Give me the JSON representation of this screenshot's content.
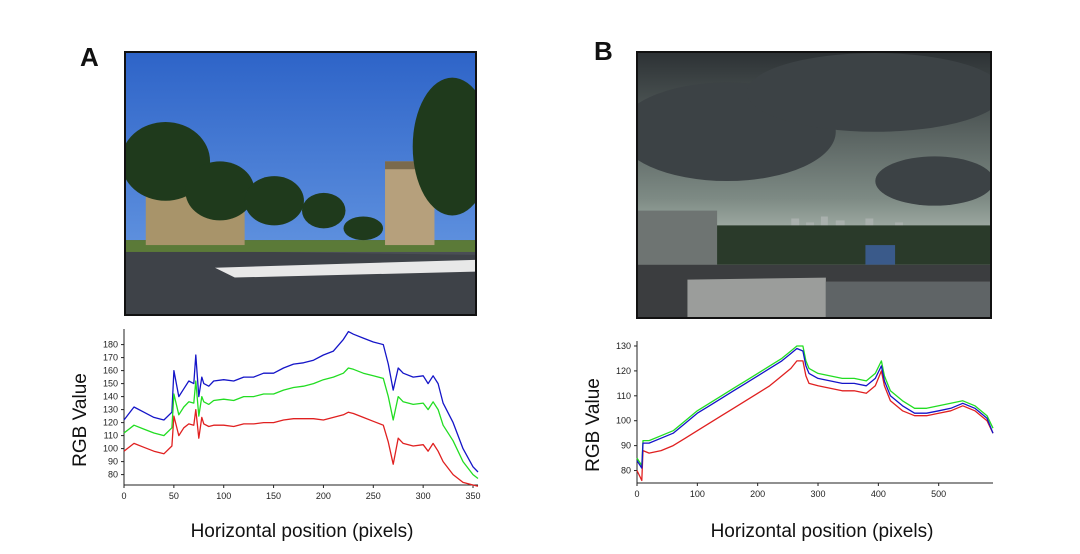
{
  "panels": [
    {
      "letter": "A",
      "photo": "campus street scene under clear blue sky"
    },
    {
      "letter": "B",
      "photo": "storm clouds over city skyline"
    }
  ],
  "colors": {
    "red": "#e02020",
    "green": "#22dd22",
    "blue": "#1515c8"
  },
  "chart_data": [
    {
      "type": "line",
      "panel": "A",
      "xlabel": "Horizontal position (pixels)",
      "ylabel": "RGB Value",
      "xlim": [
        0,
        355
      ],
      "ylim": [
        72,
        192
      ],
      "xticks": [
        0,
        50,
        100,
        150,
        200,
        250,
        300,
        350
      ],
      "yticks": [
        80,
        90,
        100,
        110,
        120,
        130,
        140,
        150,
        160,
        170,
        180
      ],
      "series": [
        {
          "name": "Blue",
          "color": "#1515c8",
          "x": [
            0,
            10,
            20,
            30,
            40,
            48,
            50,
            55,
            60,
            65,
            70,
            72,
            75,
            78,
            80,
            85,
            90,
            100,
            110,
            120,
            130,
            140,
            150,
            160,
            170,
            180,
            190,
            200,
            210,
            220,
            225,
            230,
            240,
            250,
            260,
            265,
            270,
            275,
            280,
            290,
            300,
            305,
            310,
            315,
            320,
            330,
            340,
            350,
            355
          ],
          "y": [
            122,
            132,
            128,
            124,
            122,
            128,
            160,
            140,
            146,
            152,
            150,
            172,
            140,
            155,
            150,
            148,
            152,
            153,
            152,
            155,
            155,
            158,
            158,
            162,
            165,
            166,
            168,
            172,
            175,
            184,
            190,
            188,
            185,
            182,
            180,
            165,
            145,
            162,
            158,
            155,
            156,
            150,
            156,
            150,
            135,
            120,
            100,
            86,
            82
          ]
        },
        {
          "name": "Green",
          "color": "#22dd22",
          "x": [
            0,
            10,
            20,
            30,
            40,
            48,
            50,
            55,
            60,
            65,
            70,
            72,
            75,
            78,
            80,
            85,
            90,
            100,
            110,
            120,
            130,
            140,
            150,
            160,
            170,
            180,
            190,
            200,
            210,
            220,
            225,
            230,
            240,
            250,
            260,
            265,
            270,
            275,
            280,
            290,
            300,
            305,
            310,
            315,
            320,
            330,
            340,
            350,
            355
          ],
          "y": [
            112,
            118,
            115,
            112,
            110,
            116,
            142,
            126,
            132,
            136,
            135,
            152,
            125,
            140,
            136,
            134,
            137,
            138,
            137,
            140,
            140,
            142,
            142,
            145,
            147,
            148,
            150,
            153,
            155,
            158,
            162,
            161,
            158,
            156,
            154,
            140,
            122,
            140,
            136,
            134,
            135,
            130,
            136,
            130,
            118,
            106,
            90,
            80,
            77
          ]
        },
        {
          "name": "Red",
          "color": "#e02020",
          "x": [
            0,
            10,
            20,
            30,
            40,
            48,
            50,
            55,
            60,
            65,
            70,
            72,
            75,
            78,
            80,
            85,
            90,
            100,
            110,
            120,
            130,
            140,
            150,
            160,
            170,
            180,
            190,
            200,
            210,
            220,
            225,
            230,
            240,
            250,
            260,
            265,
            270,
            275,
            280,
            290,
            300,
            305,
            310,
            315,
            320,
            330,
            340,
            350,
            355
          ],
          "y": [
            98,
            104,
            101,
            98,
            96,
            102,
            125,
            110,
            116,
            119,
            118,
            130,
            108,
            124,
            119,
            117,
            118,
            118,
            117,
            119,
            119,
            120,
            120,
            122,
            123,
            123,
            123,
            122,
            124,
            126,
            128,
            127,
            124,
            121,
            118,
            105,
            88,
            108,
            104,
            102,
            103,
            98,
            104,
            98,
            90,
            80,
            74,
            72,
            71
          ]
        }
      ]
    },
    {
      "type": "line",
      "panel": "B",
      "xlabel": "Horizontal position (pixels)",
      "ylabel": "RGB Value",
      "xlim": [
        0,
        590
      ],
      "ylim": [
        75,
        132
      ],
      "xticks": [
        0,
        100,
        200,
        300,
        400,
        500
      ],
      "yticks": [
        80,
        90,
        100,
        110,
        120,
        130
      ],
      "series": [
        {
          "name": "Red",
          "color": "#e02020",
          "x": [
            0,
            8,
            10,
            20,
            40,
            60,
            80,
            100,
            120,
            140,
            160,
            180,
            200,
            220,
            240,
            255,
            265,
            275,
            280,
            285,
            300,
            320,
            340,
            360,
            380,
            395,
            405,
            410,
            420,
            440,
            460,
            480,
            500,
            520,
            540,
            560,
            580,
            590
          ],
          "y": [
            80,
            76,
            88,
            87,
            88,
            90,
            93,
            96,
            99,
            102,
            105,
            108,
            111,
            114,
            118,
            121,
            124,
            124,
            118,
            115,
            114,
            113,
            112,
            112,
            111,
            114,
            120,
            114,
            108,
            104,
            102,
            102,
            103,
            104,
            106,
            104,
            100,
            95
          ]
        },
        {
          "name": "Green",
          "color": "#22dd22",
          "x": [
            0,
            8,
            10,
            20,
            40,
            60,
            80,
            100,
            120,
            140,
            160,
            180,
            200,
            220,
            240,
            255,
            265,
            275,
            280,
            285,
            300,
            320,
            340,
            360,
            380,
            395,
            405,
            410,
            420,
            440,
            460,
            480,
            500,
            520,
            540,
            560,
            580,
            590
          ],
          "y": [
            85,
            82,
            92,
            92,
            94,
            96,
            100,
            104,
            107,
            110,
            113,
            116,
            119,
            122,
            125,
            128,
            130,
            130,
            124,
            121,
            119,
            118,
            117,
            117,
            116,
            119,
            124,
            118,
            112,
            108,
            105,
            105,
            106,
            107,
            108,
            106,
            102,
            97
          ]
        },
        {
          "name": "Blue",
          "color": "#1515c8",
          "x": [
            0,
            8,
            10,
            20,
            40,
            60,
            80,
            100,
            120,
            140,
            160,
            180,
            200,
            220,
            240,
            255,
            265,
            275,
            280,
            285,
            300,
            320,
            340,
            360,
            380,
            395,
            405,
            410,
            420,
            440,
            460,
            480,
            500,
            520,
            540,
            560,
            580,
            590
          ],
          "y": [
            84,
            81,
            91,
            91,
            93,
            95,
            99,
            103,
            106,
            109,
            112,
            115,
            118,
            121,
            124,
            127,
            129,
            128,
            122,
            119,
            117,
            116,
            115,
            115,
            114,
            117,
            122,
            116,
            110,
            106,
            103,
            103,
            104,
            105,
            107,
            105,
            101,
            95
          ]
        }
      ]
    }
  ]
}
